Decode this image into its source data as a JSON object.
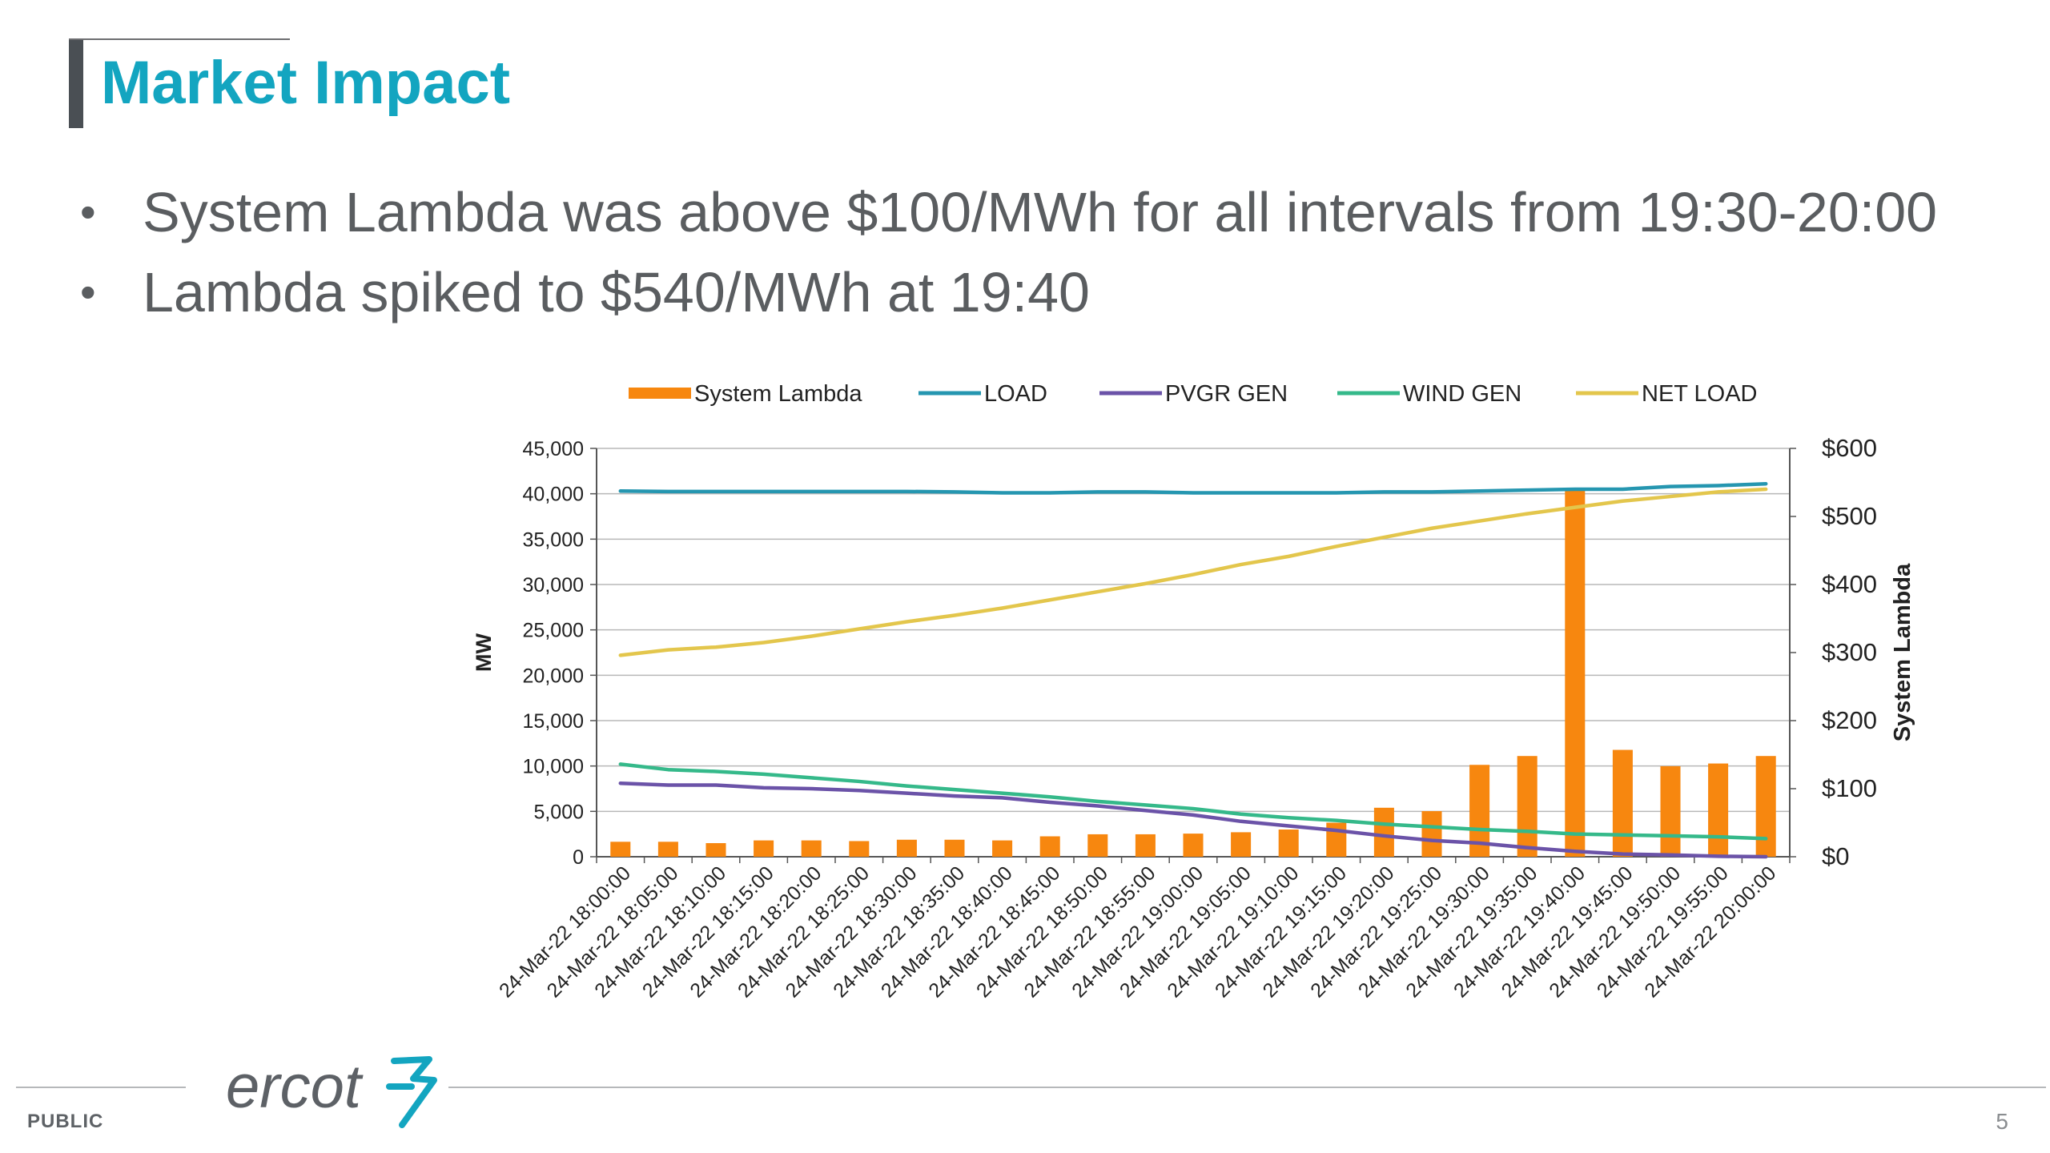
{
  "slide": {
    "title": "Market Impact",
    "bullets": [
      "System Lambda was above $100/MWh for all intervals from 19:30-20:00",
      "Lambda spiked to $540/MWh at 19:40"
    ],
    "bullet_glyph": "•",
    "footer": {
      "classification": "PUBLIC",
      "page_number": "5",
      "logo_text": "ercot"
    }
  },
  "colors": {
    "title": "#13a5c0",
    "lambda": "#f7870f",
    "load": "#2596b0",
    "pvgr": "#6b53a8",
    "wind": "#35b98a",
    "net_load": "#e3c64c"
  },
  "chart_data": {
    "type": "bar+line",
    "categories": [
      "24-Mar-22 18:00:00",
      "24-Mar-22 18:05:00",
      "24-Mar-22 18:10:00",
      "24-Mar-22 18:15:00",
      "24-Mar-22 18:20:00",
      "24-Mar-22 18:25:00",
      "24-Mar-22 18:30:00",
      "24-Mar-22 18:35:00",
      "24-Mar-22 18:40:00",
      "24-Mar-22 18:45:00",
      "24-Mar-22 18:50:00",
      "24-Mar-22 18:55:00",
      "24-Mar-22 19:00:00",
      "24-Mar-22 19:05:00",
      "24-Mar-22 19:10:00",
      "24-Mar-22 19:15:00",
      "24-Mar-22 19:20:00",
      "24-Mar-22 19:25:00",
      "24-Mar-22 19:30:00",
      "24-Mar-22 19:35:00",
      "24-Mar-22 19:40:00",
      "24-Mar-22 19:45:00",
      "24-Mar-22 19:50:00",
      "24-Mar-22 19:55:00",
      "24-Mar-22 20:00:00"
    ],
    "ylabel": "MW",
    "ylabel_right": "System Lambda",
    "ylim": [
      0,
      45000
    ],
    "ylim_right": [
      0,
      600
    ],
    "yticks": [
      "0",
      "5,000",
      "10,000",
      "15,000",
      "20,000",
      "25,000",
      "30,000",
      "35,000",
      "40,000",
      "45,000"
    ],
    "yticks_right": [
      "$0",
      "$100",
      "$200",
      "$300",
      "$400",
      "$500",
      "$600"
    ],
    "grid": true,
    "legend": "top",
    "series": [
      {
        "name": "System Lambda",
        "kind": "bar",
        "axis": "right",
        "color_key": "lambda",
        "values": [
          22,
          22,
          20,
          24,
          24,
          23,
          25,
          25,
          24,
          30,
          33,
          33,
          34,
          36,
          40,
          50,
          72,
          67,
          135,
          148,
          540,
          157,
          133,
          137,
          148
        ]
      },
      {
        "name": "LOAD",
        "kind": "line",
        "axis": "left",
        "color_key": "load",
        "values": [
          40300,
          40250,
          40250,
          40250,
          40250,
          40250,
          40250,
          40200,
          40100,
          40100,
          40200,
          40200,
          40100,
          40100,
          40100,
          40100,
          40200,
          40200,
          40300,
          40400,
          40500,
          40500,
          40800,
          40900,
          41100
        ]
      },
      {
        "name": "PVGR GEN",
        "kind": "line",
        "axis": "left",
        "color_key": "pvgr",
        "values": [
          8100,
          7900,
          7900,
          7600,
          7500,
          7300,
          7000,
          6700,
          6500,
          6000,
          5600,
          5100,
          4600,
          3900,
          3400,
          2900,
          2300,
          1800,
          1500,
          1000,
          600,
          300,
          200,
          50,
          0
        ]
      },
      {
        "name": "WIND GEN",
        "kind": "line",
        "axis": "left",
        "color_key": "wind",
        "values": [
          10200,
          9600,
          9400,
          9100,
          8700,
          8300,
          7800,
          7400,
          7000,
          6600,
          6100,
          5700,
          5300,
          4700,
          4300,
          4000,
          3600,
          3300,
          3000,
          2800,
          2500,
          2400,
          2300,
          2200,
          2000
        ]
      },
      {
        "name": "NET LOAD",
        "kind": "line",
        "axis": "left",
        "color_key": "net_load",
        "values": [
          22200,
          22800,
          23100,
          23600,
          24300,
          25100,
          25900,
          26600,
          27400,
          28300,
          29200,
          30100,
          31100,
          32200,
          33100,
          34200,
          35200,
          36200,
          37000,
          37800,
          38500,
          39200,
          39700,
          40200,
          40500
        ]
      }
    ]
  }
}
